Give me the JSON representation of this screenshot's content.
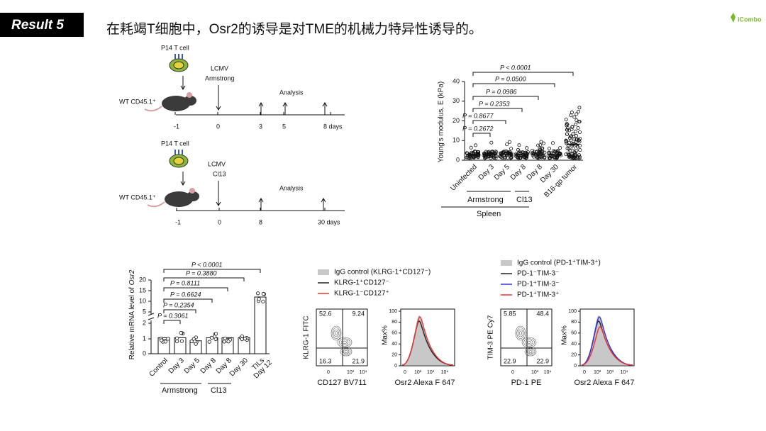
{
  "header": {
    "label": "Result 5",
    "title": "在耗竭T细胞中，Osr2的诱导是对TME的机械力特异性诱导的。",
    "logo": "iCombo"
  },
  "timeline_armstrong": {
    "cell": "P14 T cell",
    "mouse": "WT CD45.1⁺",
    "infection": [
      "LCMV",
      "Armstrong"
    ],
    "analysis": "Analysis",
    "ticks": [
      "-1",
      "0",
      "3",
      "5",
      "8 days"
    ]
  },
  "timeline_cl13": {
    "cell": "P14 T cell",
    "mouse": "WT CD45.1⁺",
    "infection": [
      "LCMV",
      "Cl13"
    ],
    "analysis": "Analysis",
    "ticks": [
      "-1",
      "0",
      "8",
      "30 days"
    ]
  },
  "stiffness_plot": {
    "y_label": "Young's modulus, E (kPa)",
    "yticks": [
      "0",
      "10",
      "20",
      "30",
      "40"
    ],
    "p_values": [
      "P < 0.0001",
      "P = 0.0500",
      "P = 0.0986",
      "P = 0.2353",
      "P = 0.8677",
      "P = 0.2672"
    ],
    "categories": [
      "Uninfected",
      "Day 3",
      "Day 5",
      "Day 8",
      "Day 8",
      "Day 30",
      "B16-gp tumor"
    ],
    "groups": [
      "Armstrong",
      "Cl13"
    ],
    "tissue": "Spleen"
  },
  "mrna_plot": {
    "y_label": "Relative mRNA level of ",
    "y_label_gene": "Osr2",
    "yticks": [
      "0",
      "1",
      "2",
      "5",
      "10",
      "15",
      "20"
    ],
    "p_values": [
      "P < 0.0001",
      "P = 0.3880",
      "P = 0.8111",
      "P = 0.6624",
      "P = 0.2354",
      "P = 0.3061"
    ],
    "categories": [
      "Control",
      "Day 3",
      "Day 5",
      "Day 8",
      "Day 8",
      "Day 30"
    ],
    "last_category": [
      "TILs",
      "Day 12"
    ],
    "groups": [
      "Armstrong",
      "Cl13"
    ]
  },
  "flow_klrg": {
    "legend": [
      "IgG control (KLRG-1⁺CD127⁻)",
      "KLRG-1⁺CD127⁻",
      "KLRG-1⁻CD127⁺"
    ],
    "quadrants": [
      "52.6",
      "9.24",
      "16.3",
      "21.9"
    ],
    "y_label": "KLRG-1 FITC",
    "x_label": "CD127 BV711",
    "x_ticks": [
      "0",
      "10³",
      "10⁴"
    ],
    "hist_y_label": "Max%",
    "hist_yticks": [
      "100",
      "80",
      "60",
      "40",
      "20",
      "0"
    ],
    "hist_x_ticks": [
      "0",
      "10²",
      "10³",
      "10⁴"
    ],
    "hist_x_label": "Osr2 Alexa F 647"
  },
  "flow_pd1": {
    "legend": [
      "IgG control (PD-1⁺TIM-3⁺)",
      "PD-1⁻TIM-3⁻",
      "PD-1⁺TIM-3⁻",
      "PD-1⁺TIM-3⁺"
    ],
    "quadrants": [
      "5.85",
      "48.4",
      "22.9",
      "22.9"
    ],
    "y_label": "TIM-3 PE Cy7",
    "x_label": "PD-1 PE",
    "x_ticks": [
      "0",
      "10³",
      "10⁴"
    ],
    "hist_y_label": "Max%",
    "hist_yticks": [
      "100",
      "80",
      "60",
      "40",
      "20",
      "0"
    ],
    "hist_x_ticks": [
      "0",
      "10²",
      "10³",
      "10⁴"
    ],
    "hist_x_label": "Osr2 Alexa F 647"
  }
}
